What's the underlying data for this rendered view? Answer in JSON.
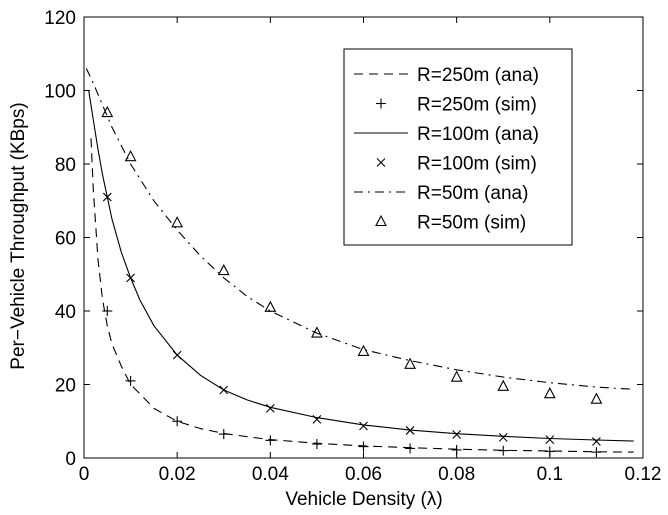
{
  "chart_data": {
    "type": "line",
    "title": "",
    "xlabel": "Vehicle Density (λ)",
    "ylabel": "Per−Vehicle Throughput (KBps)",
    "xlim": [
      0,
      0.12
    ],
    "ylim": [
      0,
      120
    ],
    "xticks": [
      "0",
      "0.02",
      "0.04",
      "0.06",
      "0.08",
      "0.1",
      "0.12"
    ],
    "yticks": [
      "0",
      "20",
      "40",
      "60",
      "80",
      "100",
      "120"
    ],
    "grid": false,
    "legend_position": "top-right",
    "series": [
      {
        "name": "R=250m (ana)",
        "style": "dashed",
        "marker": "none",
        "x": [
          0.0015,
          0.002,
          0.003,
          0.004,
          0.005,
          0.006,
          0.008,
          0.01,
          0.012,
          0.015,
          0.02,
          0.025,
          0.03,
          0.035,
          0.04,
          0.05,
          0.06,
          0.07,
          0.08,
          0.09,
          0.1,
          0.11,
          0.118
        ],
        "y": [
          87,
          73,
          54,
          43,
          36,
          31,
          25,
          20,
          17.5,
          13.5,
          10,
          8,
          6.7,
          5.8,
          5,
          4,
          3.3,
          2.8,
          2.4,
          2.1,
          1.9,
          1.7,
          1.6
        ]
      },
      {
        "name": "R=250m (sim)",
        "style": "none",
        "marker": "plus",
        "x": [
          0.005,
          0.01,
          0.02,
          0.03,
          0.04,
          0.05,
          0.06,
          0.07,
          0.08,
          0.09,
          0.1,
          0.11
        ],
        "y": [
          40,
          21,
          10,
          6.5,
          4.8,
          3.8,
          3.1,
          2.6,
          2.2,
          2,
          1.8,
          1.6
        ]
      },
      {
        "name": "R=100m (ana)",
        "style": "solid",
        "marker": "none",
        "x": [
          0.001,
          0.002,
          0.003,
          0.004,
          0.005,
          0.006,
          0.008,
          0.01,
          0.012,
          0.015,
          0.02,
          0.025,
          0.03,
          0.035,
          0.04,
          0.05,
          0.06,
          0.07,
          0.08,
          0.09,
          0.1,
          0.11,
          0.118
        ],
        "y": [
          100,
          92,
          84,
          77,
          71,
          65,
          56,
          49,
          43,
          36,
          28,
          22.5,
          18.5,
          15.8,
          13.8,
          11,
          9,
          7.6,
          6.6,
          5.9,
          5.3,
          4.9,
          4.6
        ]
      },
      {
        "name": "R=100m (sim)",
        "style": "none",
        "marker": "cross",
        "x": [
          0.005,
          0.01,
          0.02,
          0.03,
          0.04,
          0.05,
          0.06,
          0.07,
          0.08,
          0.09,
          0.1,
          0.11
        ],
        "y": [
          71,
          49,
          28,
          18.5,
          13.5,
          10.5,
          8.7,
          7.5,
          6.4,
          5.6,
          5,
          4.5
        ]
      },
      {
        "name": "R=50m (ana)",
        "style": "dashdot",
        "marker": "none",
        "x": [
          0.0005,
          0.002,
          0.004,
          0.006,
          0.008,
          0.01,
          0.015,
          0.02,
          0.025,
          0.03,
          0.035,
          0.04,
          0.05,
          0.06,
          0.07,
          0.08,
          0.09,
          0.1,
          0.11,
          0.118
        ],
        "y": [
          106,
          102,
          96,
          90,
          85,
          80,
          70,
          62,
          55,
          49,
          44,
          40,
          34,
          29.5,
          26.5,
          24,
          22,
          20.5,
          19.3,
          18.7
        ]
      },
      {
        "name": "R=50m (sim)",
        "style": "none",
        "marker": "triangle",
        "x": [
          0.005,
          0.01,
          0.02,
          0.03,
          0.04,
          0.05,
          0.06,
          0.07,
          0.08,
          0.09,
          0.1,
          0.11
        ],
        "y": [
          94,
          82,
          64,
          51,
          41,
          34,
          29,
          25.5,
          22,
          19.5,
          17.5,
          16
        ]
      }
    ]
  }
}
